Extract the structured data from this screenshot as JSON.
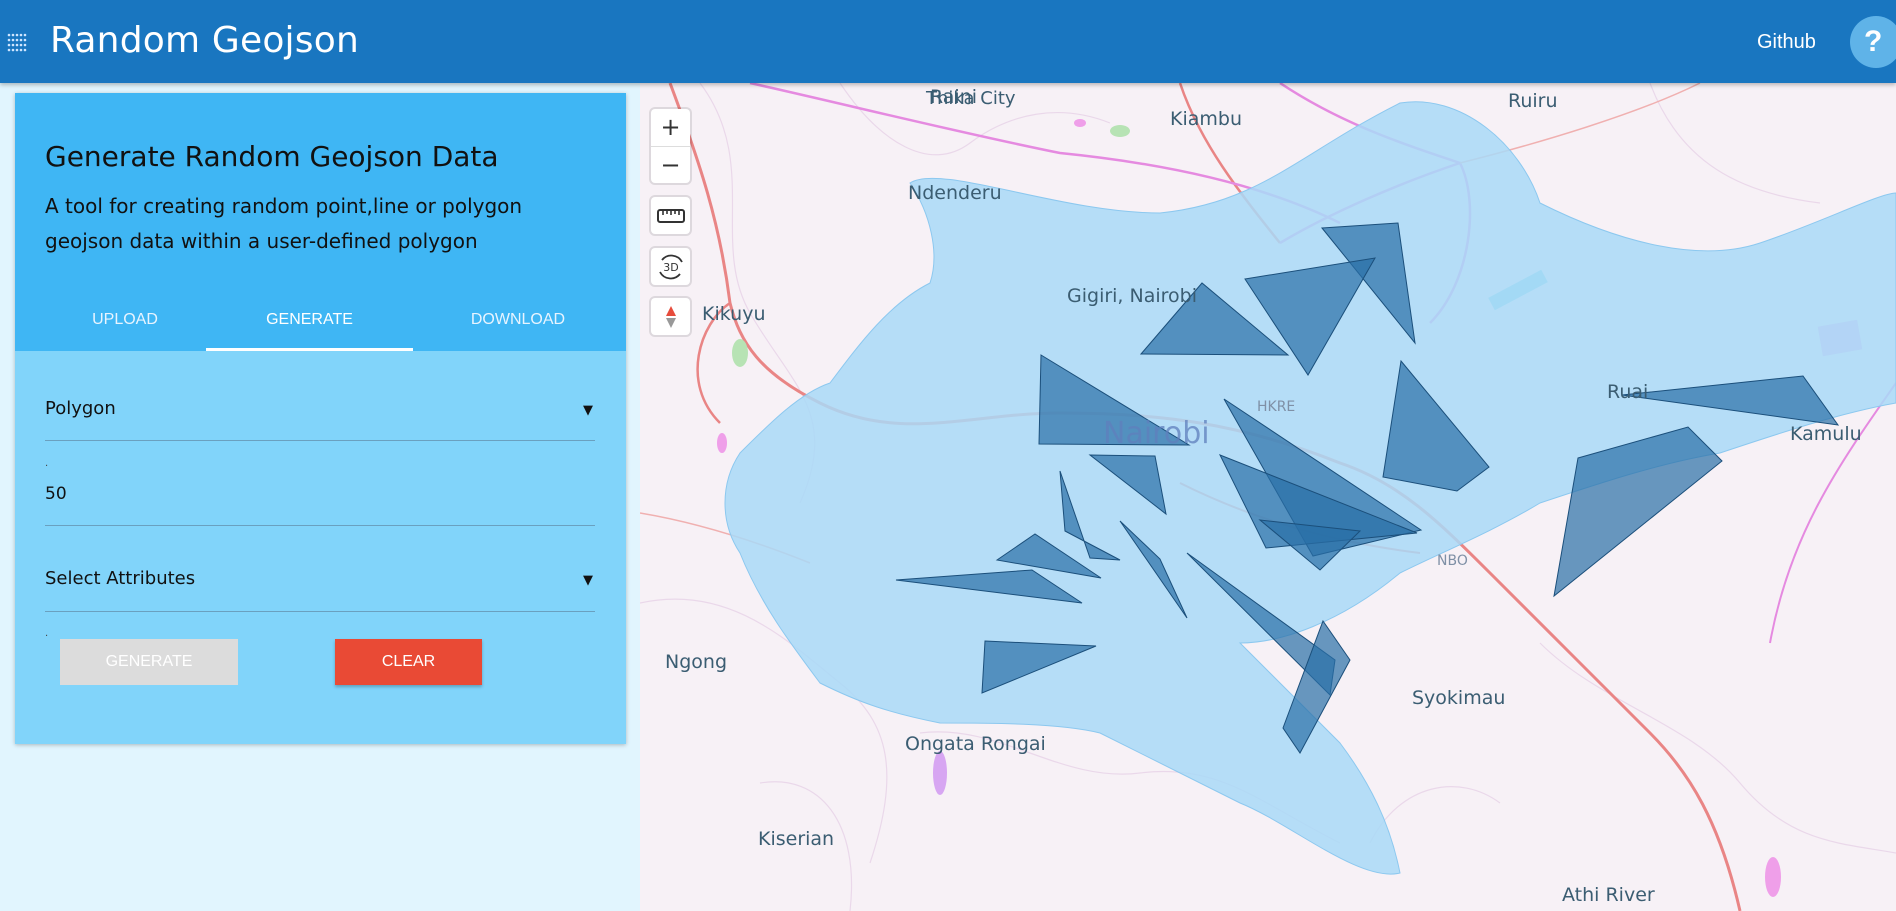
{
  "header": {
    "title": "Random Geojson",
    "github_label": "Github",
    "help_label": "?"
  },
  "card": {
    "title": "Generate Random Geojson Data",
    "description": "A tool for creating random point,line or polygon geojson data within a user-defined polygon",
    "tabs": [
      {
        "label": "UPLOAD",
        "active": false
      },
      {
        "label": "GENERATE",
        "active": true
      },
      {
        "label": "DOWNLOAD",
        "active": false
      }
    ],
    "geometry_select": {
      "value": "Polygon"
    },
    "count_field": {
      "value": "50"
    },
    "attributes_select": {
      "value": "Select Attributes"
    },
    "generate_label": "GENERATE",
    "clear_label": "CLEAR"
  },
  "map": {
    "controls": {
      "zoom_in": "+",
      "zoom_out": "−",
      "measure": "ruler-icon",
      "toggle_3d": "3D",
      "compass": "compass-icon"
    },
    "places": {
      "raini": "Raini",
      "kiambu": "Kiambu",
      "ruiru": "Ruiru",
      "ndenderu": "Ndenderu",
      "gigiri": "Gigiri, Nairobi",
      "kikuyu": "Kikuyu",
      "nairobi": "Nairobi",
      "hkre": "HKRE",
      "ruai": "Ruai",
      "kamulu": "Kamulu",
      "nbo": "NBO",
      "ngong": "Ngong",
      "syokimau": "Syokimau",
      "ongata_rongai": "Ongata Rongai",
      "kiserian": "Kiserian",
      "athi_river": "Athi River",
      "top_partial": "Thika City"
    },
    "colors": {
      "boundary_fill": "#a9d9f7",
      "polygon_fill": "#2a6fa6",
      "road": "#e98585",
      "highway": "#e58ae0"
    }
  }
}
